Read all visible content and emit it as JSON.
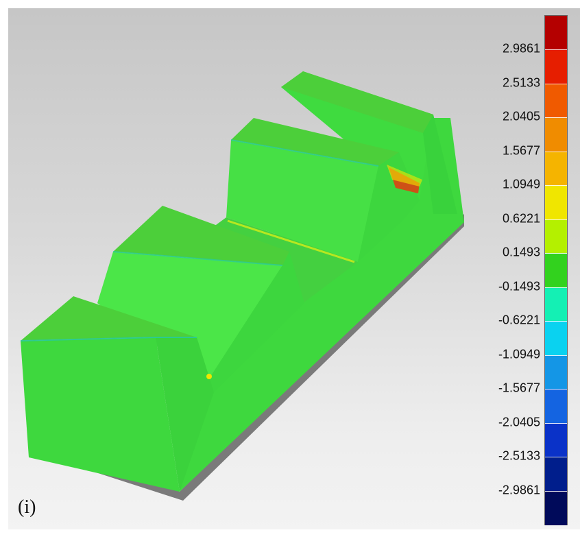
{
  "panel_label": "(i)",
  "legend": {
    "ticks": [
      "2.9861",
      "2.5133",
      "2.0405",
      "1.5677",
      "1.0949",
      "0.6221",
      "0.1493",
      "-0.1493",
      "-0.6221",
      "-1.0949",
      "-1.5677",
      "-2.0405",
      "-2.5133",
      "-2.9861"
    ],
    "colors": [
      "#b40000",
      "#e61e00",
      "#f05a00",
      "#f08c00",
      "#f5b400",
      "#f0e600",
      "#b4f000",
      "#32d21e",
      "#14f0b4",
      "#0ad2f0",
      "#1496e6",
      "#1464e1",
      "#0a32c8",
      "#001e8c",
      "#000a5a"
    ]
  },
  "model": {
    "surface_color": "#3bd43b",
    "top_color": "#4cc93a",
    "deviation_hotspot_color": "#e83a10"
  }
}
